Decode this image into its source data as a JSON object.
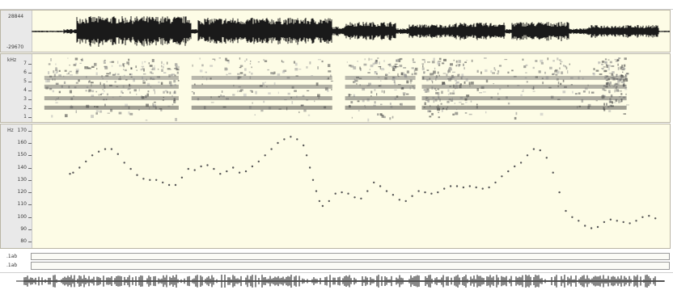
{
  "waveform": {
    "max_label": "28844",
    "min_label": "-29670"
  },
  "spectrogram": {
    "unit_label": "kHz",
    "ticks": [
      "7",
      "6",
      "5",
      "4",
      "3",
      "2",
      "1"
    ]
  },
  "pitch": {
    "unit_label": "Hz",
    "ticks": [
      "170",
      "160",
      "150",
      "140",
      "130",
      "120",
      "110",
      "100",
      "90",
      "80"
    ],
    "y_range": [
      75,
      175
    ]
  },
  "tiers": [
    {
      "name": ".1ab"
    },
    {
      "name": ".1ab"
    }
  ],
  "colors": {
    "panel_bg": "#fdfce6",
    "wave": "#1a1a1a",
    "pitch_point": "#555555",
    "gutter": "#e9e9e9"
  },
  "chart_data": {
    "type": "scatter",
    "xlabel": "",
    "ylabel": "Hz",
    "ylim": [
      75,
      175
    ],
    "series": [
      {
        "values": [
          [
            0.06,
            135
          ],
          [
            0.065,
            136
          ],
          [
            0.075,
            140
          ],
          [
            0.085,
            145
          ],
          [
            0.095,
            150
          ],
          [
            0.105,
            153
          ],
          [
            0.115,
            155
          ],
          [
            0.125,
            155
          ],
          [
            0.135,
            151
          ],
          [
            0.145,
            144
          ],
          [
            0.155,
            139
          ],
          [
            0.165,
            134
          ],
          [
            0.175,
            131
          ],
          [
            0.185,
            130
          ],
          [
            0.195,
            130
          ],
          [
            0.205,
            128
          ],
          [
            0.215,
            126
          ],
          [
            0.225,
            126
          ],
          [
            0.235,
            132
          ],
          [
            0.245,
            139
          ],
          [
            0.255,
            138
          ],
          [
            0.265,
            141
          ],
          [
            0.275,
            142
          ],
          [
            0.285,
            139
          ],
          [
            0.295,
            135
          ],
          [
            0.305,
            137
          ],
          [
            0.315,
            140
          ],
          [
            0.325,
            136
          ],
          [
            0.335,
            137
          ],
          [
            0.345,
            141
          ],
          [
            0.355,
            145
          ],
          [
            0.365,
            150
          ],
          [
            0.375,
            155
          ],
          [
            0.385,
            160
          ],
          [
            0.395,
            163
          ],
          [
            0.405,
            165
          ],
          [
            0.415,
            163
          ],
          [
            0.425,
            158
          ],
          [
            0.43,
            150
          ],
          [
            0.435,
            140
          ],
          [
            0.44,
            130
          ],
          [
            0.445,
            121
          ],
          [
            0.45,
            113
          ],
          [
            0.455,
            109
          ],
          [
            0.465,
            113
          ],
          [
            0.475,
            119
          ],
          [
            0.485,
            120
          ],
          [
            0.495,
            119
          ],
          [
            0.505,
            116
          ],
          [
            0.515,
            115
          ],
          [
            0.525,
            121
          ],
          [
            0.535,
            128
          ],
          [
            0.545,
            125
          ],
          [
            0.555,
            121
          ],
          [
            0.565,
            118
          ],
          [
            0.575,
            114
          ],
          [
            0.585,
            113
          ],
          [
            0.595,
            117
          ],
          [
            0.605,
            121
          ],
          [
            0.615,
            120
          ],
          [
            0.625,
            119
          ],
          [
            0.635,
            120
          ],
          [
            0.645,
            123
          ],
          [
            0.655,
            125
          ],
          [
            0.665,
            125
          ],
          [
            0.675,
            124
          ],
          [
            0.685,
            125
          ],
          [
            0.695,
            124
          ],
          [
            0.705,
            123
          ],
          [
            0.715,
            124
          ],
          [
            0.725,
            128
          ],
          [
            0.735,
            133
          ],
          [
            0.745,
            137
          ],
          [
            0.755,
            141
          ],
          [
            0.765,
            144
          ],
          [
            0.775,
            150
          ],
          [
            0.785,
            155
          ],
          [
            0.795,
            154
          ],
          [
            0.805,
            148
          ],
          [
            0.815,
            136
          ],
          [
            0.825,
            120
          ],
          [
            0.835,
            105
          ],
          [
            0.845,
            100
          ],
          [
            0.855,
            97
          ],
          [
            0.865,
            93
          ],
          [
            0.875,
            91
          ],
          [
            0.885,
            92
          ],
          [
            0.895,
            96
          ],
          [
            0.905,
            98
          ],
          [
            0.915,
            97
          ],
          [
            0.925,
            96
          ],
          [
            0.935,
            95
          ],
          [
            0.945,
            97
          ],
          [
            0.955,
            100
          ],
          [
            0.965,
            101
          ],
          [
            0.975,
            99
          ]
        ]
      }
    ]
  }
}
